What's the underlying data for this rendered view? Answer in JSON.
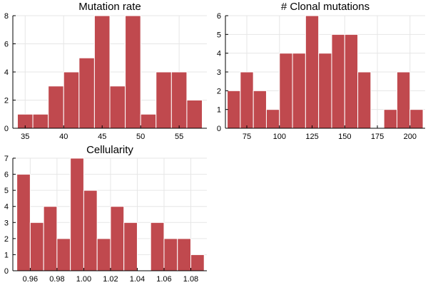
{
  "colors": {
    "bar": "#c0494e",
    "grid": "#e6e6e6",
    "axis": "#000000"
  },
  "chart_data": [
    {
      "type": "bar",
      "title": "Mutation rate",
      "xlabel": "",
      "ylabel": "",
      "bin_width": 2,
      "x": [
        34,
        36,
        38,
        40,
        42,
        44,
        46,
        48,
        50,
        52,
        54,
        56
      ],
      "values": [
        1,
        1,
        3,
        4,
        5,
        8,
        3,
        8,
        1,
        4,
        4,
        2
      ],
      "xlim": [
        33.4,
        58.6
      ],
      "ylim": [
        0,
        8
      ],
      "xticks": [
        35,
        40,
        45,
        50,
        55
      ],
      "yticks": [
        0,
        2,
        4,
        6,
        8
      ],
      "grid": true,
      "legend": "none"
    },
    {
      "type": "bar",
      "title": "# Clonal mutations",
      "xlabel": "",
      "ylabel": "",
      "bin_width": 10,
      "x": [
        60,
        70,
        80,
        90,
        100,
        110,
        120,
        130,
        140,
        150,
        160,
        170,
        180,
        190,
        200
      ],
      "values": [
        2,
        3,
        2,
        1,
        4,
        4,
        6,
        4,
        5,
        5,
        3,
        0,
        1,
        3,
        1
      ],
      "xlim": [
        58.6,
        211.6
      ],
      "ylim": [
        0,
        6
      ],
      "xticks": [
        75,
        100,
        125,
        150,
        175,
        200
      ],
      "yticks": [
        0,
        1,
        2,
        3,
        4,
        5,
        6
      ],
      "grid": true,
      "legend": "none"
    },
    {
      "type": "bar",
      "title": "Cellularity",
      "xlabel": "",
      "ylabel": "",
      "bin_width": 0.01,
      "x": [
        0.95,
        0.96,
        0.97,
        0.98,
        0.99,
        1.0,
        1.01,
        1.02,
        1.03,
        1.04,
        1.05,
        1.06,
        1.07,
        1.08
      ],
      "values": [
        6,
        3,
        4,
        2,
        7,
        5,
        2,
        4,
        3,
        0,
        3,
        2,
        2,
        1
      ],
      "xlim": [
        0.947,
        1.092
      ],
      "ylim": [
        0,
        7
      ],
      "xticks": [
        "0.96",
        "0.98",
        "1.00",
        "1.02",
        "1.04",
        "1.06",
        "1.08"
      ],
      "yticks": [
        0,
        1,
        2,
        3,
        4,
        5,
        6,
        7
      ],
      "grid": true,
      "legend": "none"
    }
  ]
}
